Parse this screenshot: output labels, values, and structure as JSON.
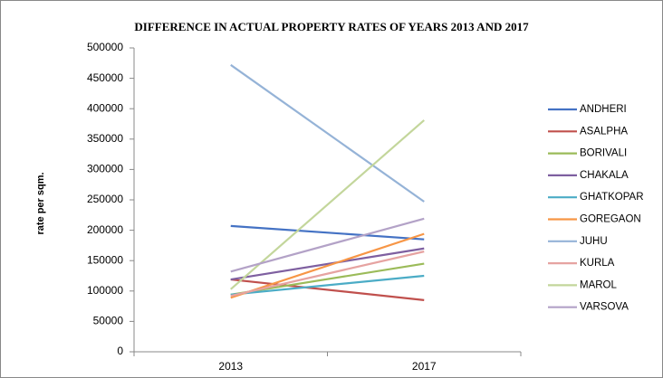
{
  "chart_data": {
    "type": "line",
    "title": "DIFFERENCE IN ACTUAL  PROPERTY RATES OF YEARS 2013 AND 2017",
    "y_label": "rate per sqm.",
    "categories": [
      "2013",
      "2017"
    ],
    "ylim": [
      0,
      500000
    ],
    "yticks": [
      0,
      50000,
      100000,
      150000,
      200000,
      250000,
      300000,
      350000,
      400000,
      450000,
      500000
    ],
    "grid": false,
    "legend": "right",
    "series": [
      {
        "name": "ANDHERI",
        "color": "#4472c4",
        "values": [
          207000,
          185000
        ]
      },
      {
        "name": "ASALPHA",
        "color": "#c0504d",
        "values": [
          119000,
          85000
        ]
      },
      {
        "name": "BORIVALI",
        "color": "#9bbb59",
        "values": [
          94000,
          145000
        ]
      },
      {
        "name": "CHAKALA",
        "color": "#7e5fa0",
        "values": [
          119000,
          170000
        ]
      },
      {
        "name": "GHATKOPAR",
        "color": "#4bacc6",
        "values": [
          94000,
          125000
        ]
      },
      {
        "name": "GOREGAON",
        "color": "#f79646",
        "values": [
          89000,
          194000
        ]
      },
      {
        "name": "JUHU",
        "color": "#95b3d7",
        "values": [
          472000,
          247000
        ]
      },
      {
        "name": "KURLA",
        "color": "#e6a3a1",
        "values": [
          92000,
          165000
        ]
      },
      {
        "name": "MAROL",
        "color": "#c3d69b",
        "values": [
          103000,
          381000
        ]
      },
      {
        "name": "VARSOVA",
        "color": "#b3a2c7",
        "values": [
          132000,
          219000
        ]
      }
    ]
  }
}
